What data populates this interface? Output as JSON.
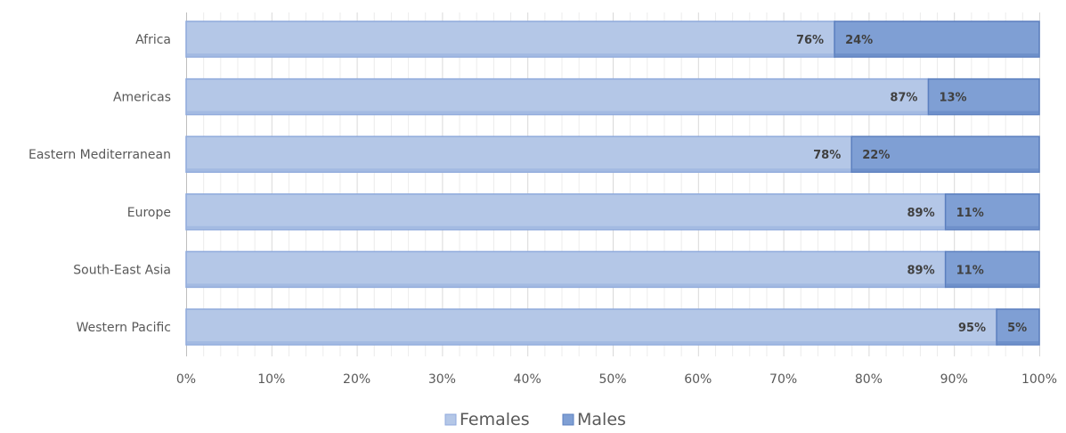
{
  "chart_data": {
    "type": "bar",
    "orientation": "horizontal",
    "stacked": "percent",
    "categories": [
      "Africa",
      "Americas",
      "Eastern Mediterranean",
      "Europe",
      "South-East Asia",
      "Western Pacific"
    ],
    "series": [
      {
        "name": "Females",
        "values": [
          76,
          87,
          78,
          89,
          89,
          95
        ],
        "labels": [
          "76%",
          "87%",
          "78%",
          "89%",
          "89%",
          "95%"
        ],
        "color": "#b4c7e7",
        "edge_color": "#8faadc"
      },
      {
        "name": "Males",
        "values": [
          24,
          13,
          22,
          11,
          11,
          5
        ],
        "labels": [
          "24%",
          "13%",
          "22%",
          "11%",
          "11%",
          "5%"
        ],
        "color": "#7f9fd4",
        "edge_color": "#5b7fbf"
      }
    ],
    "x_ticks": [
      "0%",
      "10%",
      "20%",
      "30%",
      "40%",
      "50%",
      "60%",
      "70%",
      "80%",
      "90%",
      "100%"
    ],
    "xlim": [
      0,
      100
    ],
    "title": "",
    "xlabel": "",
    "ylabel": "",
    "grid": "vertical major and minor",
    "legend": "bottom-center",
    "colors": {
      "grid": "#d9d9d9",
      "axis": "#bfbfbf",
      "text": "#595959"
    }
  }
}
